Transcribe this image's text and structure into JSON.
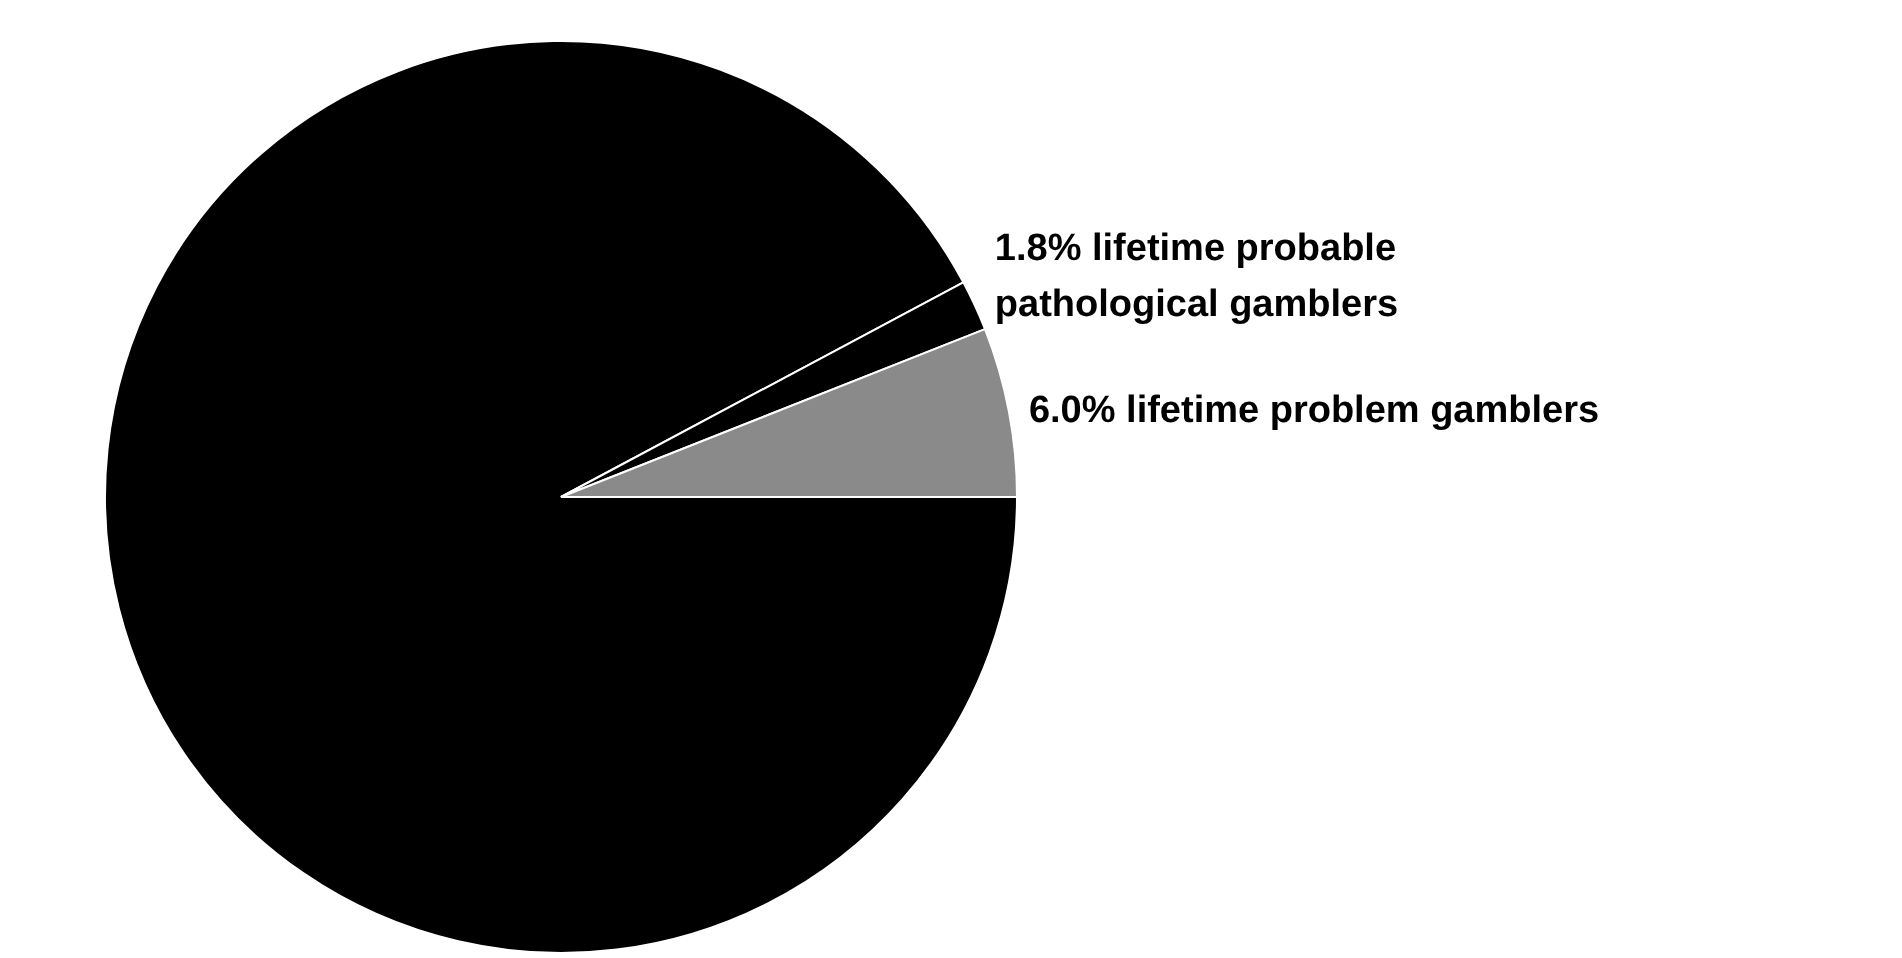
{
  "chart_data": {
    "type": "pie",
    "categories": [
      null,
      "lifetime probable pathological gamblers",
      "lifetime problem gamblers"
    ],
    "values": [
      92.2,
      1.8,
      6.0
    ],
    "value_labels": [
      null,
      "1.8%",
      "6.0%"
    ],
    "colors": [
      "#000000",
      "#000000",
      "#8a8a8a"
    ],
    "legend": false
  }
}
